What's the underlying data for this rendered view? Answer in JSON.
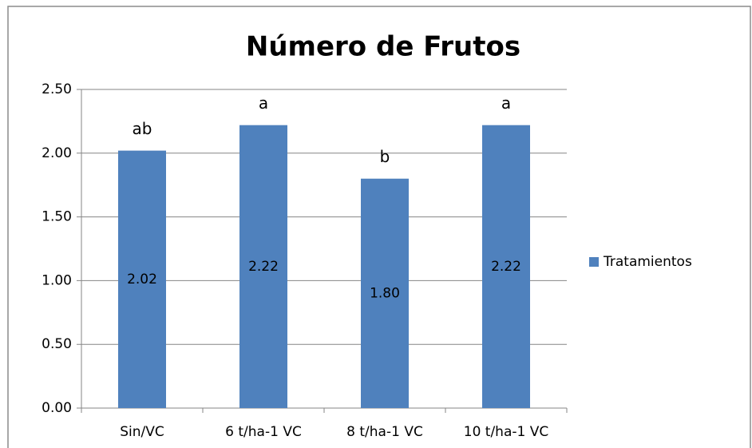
{
  "chart_data": {
    "type": "bar",
    "title": "Número de Frutos",
    "categories": [
      "Sin/VC",
      "6 t/ha-1 VC",
      "8 t/ha-1 VC",
      "10 t/ha-1 VC"
    ],
    "series": [
      {
        "name": "Tratamientos",
        "color": "#4f81bd",
        "values": [
          2.02,
          2.22,
          1.8,
          2.22
        ],
        "value_labels": [
          "2.02",
          "2.22",
          "1.80",
          "2.22"
        ]
      }
    ],
    "annotations": [
      "ab",
      "a",
      "b",
      "a"
    ],
    "ylim": [
      0,
      2.5
    ],
    "yticks": [
      {
        "value": 0,
        "label": "0.00"
      },
      {
        "value": 0.5,
        "label": "0.50"
      },
      {
        "value": 1,
        "label": "1.00"
      },
      {
        "value": 1.5,
        "label": "1.50"
      },
      {
        "value": 2,
        "label": "2.00"
      },
      {
        "value": 2.5,
        "label": "2.50"
      }
    ],
    "grid": true,
    "legend": "right"
  }
}
